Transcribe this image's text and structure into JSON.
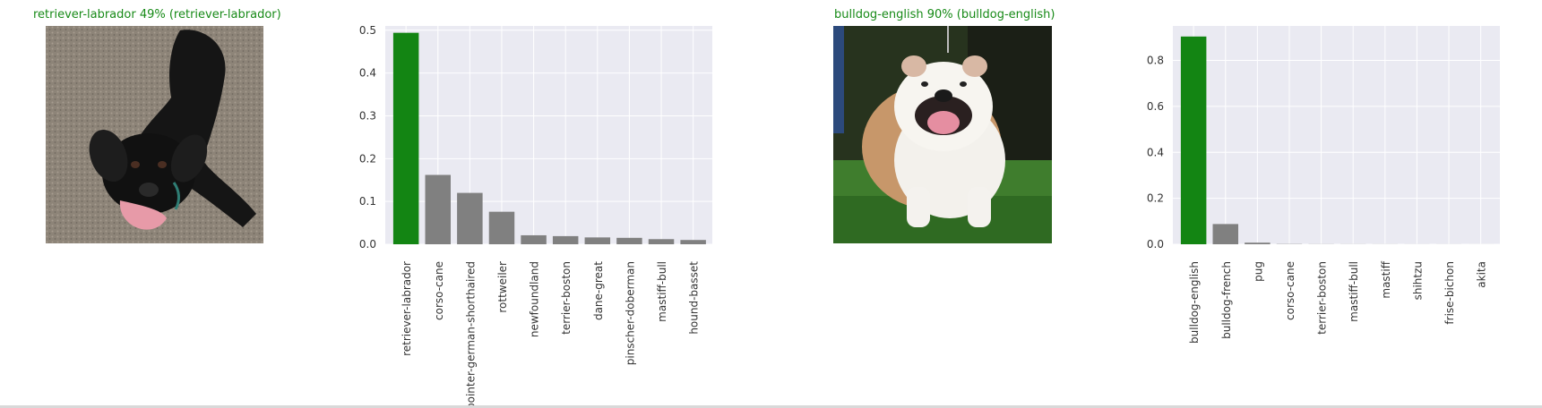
{
  "panels": [
    {
      "title": "retriever-labrador 49% (retriever-labrador)",
      "title_color": "#178a17",
      "image_subject": "black labrador retriever dog"
    },
    {
      "title": "bulldog-english 90% (bulldog-english)",
      "title_color": "#178a17",
      "image_subject": "white and fawn english bulldog"
    }
  ],
  "colors": {
    "correct_bar": "#138513",
    "other_bar": "#808080",
    "axes_bg": "#eaeaf2",
    "grid": "#ffffff"
  },
  "chart_data": [
    {
      "type": "bar",
      "categories": [
        "retriever-labrador",
        "corso-cane",
        "pointer-german-shorthaired",
        "rottweiler",
        "newfoundland",
        "terrier-boston",
        "dane-great",
        "pinscher-doberman",
        "mastiff-bull",
        "hound-basset"
      ],
      "values": [
        0.494,
        0.162,
        0.12,
        0.076,
        0.021,
        0.019,
        0.016,
        0.015,
        0.012,
        0.01
      ],
      "highlight_index": 0,
      "yticks": [
        "0.0",
        "0.1",
        "0.2",
        "0.3",
        "0.4",
        "0.5"
      ],
      "ylim": [
        0,
        0.51
      ],
      "title": "",
      "xlabel": "",
      "ylabel": "",
      "grid": true
    },
    {
      "type": "bar",
      "categories": [
        "bulldog-english",
        "bulldog-french",
        "pug",
        "corso-cane",
        "terrier-boston",
        "mastiff-bull",
        "mastiff",
        "shihtzu",
        "frise-bichon",
        "akita"
      ],
      "values": [
        0.904,
        0.088,
        0.007,
        0.001,
        0.0005,
        0.0004,
        0.0003,
        0.0002,
        0.0002,
        0.0001
      ],
      "highlight_index": 0,
      "yticks": [
        "0.0",
        "0.2",
        "0.4",
        "0.6",
        "0.8"
      ],
      "ylim": [
        0,
        0.95
      ],
      "title": "",
      "xlabel": "",
      "ylabel": "",
      "grid": true
    }
  ]
}
